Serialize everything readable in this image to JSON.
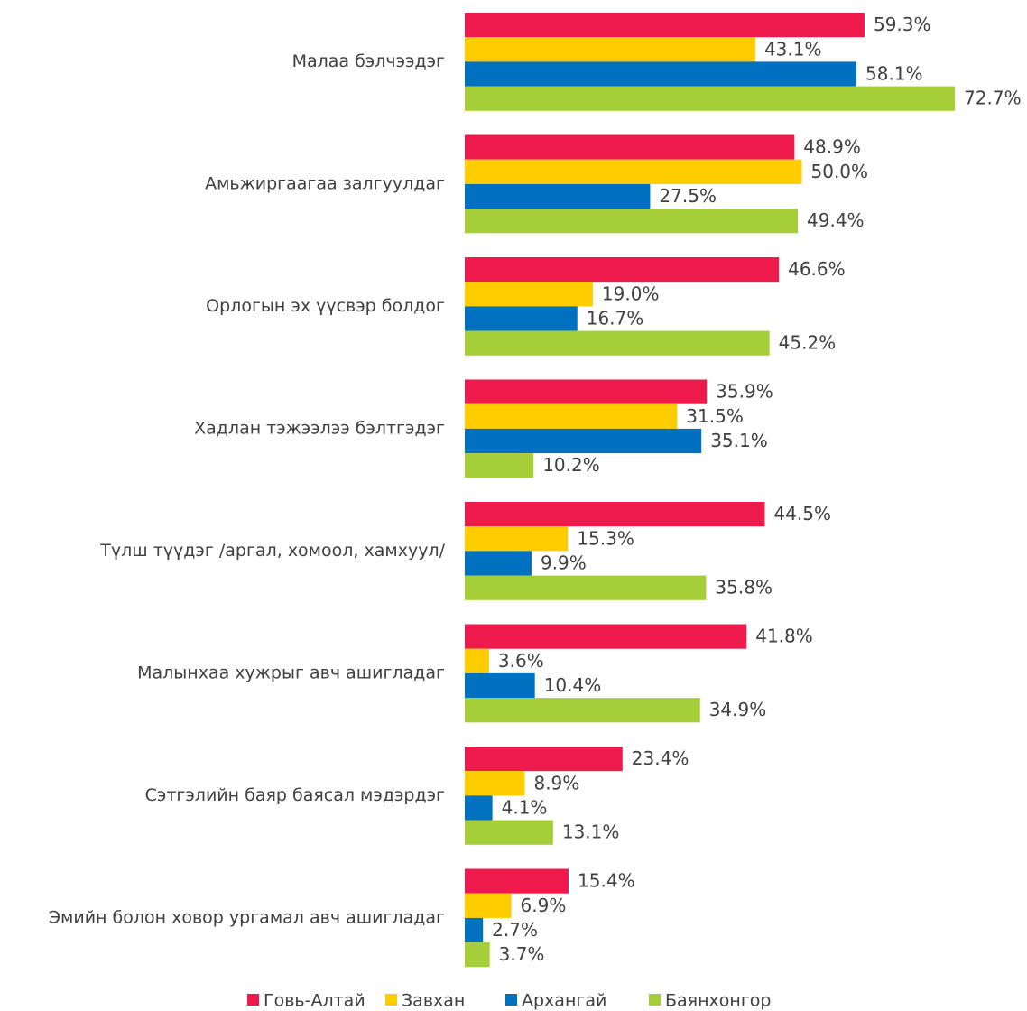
{
  "chart_data": {
    "type": "bar",
    "orientation": "horizontal",
    "categories": [
      "Малаа бэлчээдэг",
      "Амьжиргаагаа залгуулдаг",
      "Орлогын эх үүсвэр болдог",
      "Хадлан тэжээлээ бэлтгэдэг",
      "Түлш түүдэг /аргал, хомоол, хамхуул/",
      "Малынхаа хужрыг авч ашигладаг",
      "Сэтгэлийн баяр баясал мэдэрдэг",
      "Эмийн болон ховор ургамал авч ашигладаг"
    ],
    "series": [
      {
        "name": "Говь-Алтай",
        "color": "#ED1A4B",
        "values": [
          59.3,
          48.9,
          46.6,
          35.9,
          44.5,
          41.8,
          23.4,
          15.4
        ],
        "value_labels": [
          "59.3%",
          "48.9%",
          "46.6%",
          "35.9%",
          "44.5%",
          "41.8%",
          "23.4%",
          "15.4%"
        ]
      },
      {
        "name": "Завхан",
        "color": "#FFCC00",
        "values": [
          43.1,
          50.0,
          19.0,
          31.5,
          15.3,
          3.6,
          8.9,
          6.9
        ],
        "value_labels": [
          "43.1%",
          "50.0%",
          "19.0%",
          "31.5%",
          "15.3%",
          "3.6%",
          "8.9%",
          "6.9%"
        ]
      },
      {
        "name": "Архангай",
        "color": "#0070C0",
        "values": [
          58.1,
          27.5,
          16.7,
          35.1,
          9.9,
          10.4,
          4.1,
          2.7
        ],
        "value_labels": [
          "58.1%",
          "27.5%",
          "16.7%",
          "35.1%",
          "9.9%",
          "10.4%",
          "4.1%",
          "2.7%"
        ]
      },
      {
        "name": "Баянхонгор",
        "color": "#A6CE39",
        "values": [
          72.7,
          49.4,
          45.2,
          10.2,
          35.8,
          34.9,
          13.1,
          3.7
        ],
        "value_labels": [
          "72.7%",
          "49.4%",
          "45.2%",
          "10.2%",
          "35.8%",
          "34.9%",
          "13.1%",
          "3.7%"
        ]
      }
    ],
    "legend": "bottom"
  }
}
